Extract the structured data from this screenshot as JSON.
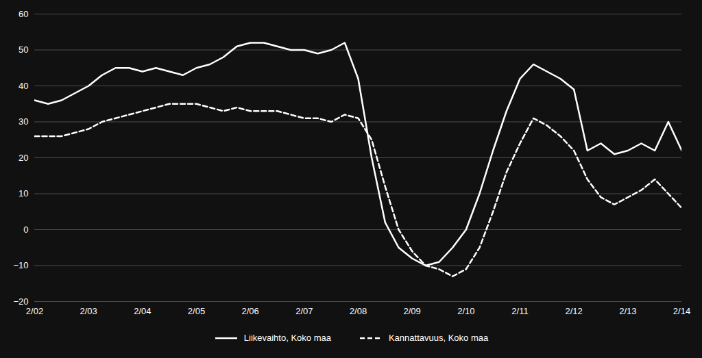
{
  "chart_data": {
    "type": "line",
    "categories": [
      "2/02",
      null,
      null,
      null,
      "2/03",
      null,
      null,
      null,
      "2/04",
      null,
      null,
      null,
      "2/05",
      null,
      null,
      null,
      "2/06",
      null,
      null,
      null,
      "2/07",
      null,
      null,
      null,
      "2/08",
      null,
      null,
      null,
      "2/09",
      null,
      null,
      null,
      "2/10",
      null,
      null,
      null,
      "2/11",
      null,
      null,
      null,
      "2/12",
      null,
      null,
      null,
      "2/13",
      null,
      null,
      null,
      "2/14"
    ],
    "series": [
      {
        "name": "Liikevaihto, Koko maa",
        "color": "#ffffff",
        "line_style": "solid",
        "values": [
          36,
          35,
          36,
          38,
          40,
          43,
          45,
          45,
          44,
          45,
          44,
          43,
          45,
          46,
          48,
          51,
          52,
          52,
          51,
          50,
          50,
          49,
          50,
          52,
          42,
          20,
          2,
          -5,
          -8,
          -10,
          -9,
          -5,
          0,
          10,
          22,
          33,
          42,
          46,
          44,
          42,
          39,
          22,
          24,
          21,
          22,
          24,
          22,
          30,
          22
        ]
      },
      {
        "name": "Kannattavuus, Koko maa",
        "color": "#ffffff",
        "line_style": "dashed",
        "values": [
          26,
          26,
          26,
          27,
          28,
          30,
          31,
          32,
          33,
          34,
          35,
          35,
          35,
          34,
          33,
          34,
          33,
          33,
          33,
          32,
          31,
          31,
          30,
          32,
          31,
          25,
          12,
          0,
          -6,
          -10,
          -11,
          -13,
          -11,
          -5,
          5,
          16,
          24,
          31,
          29,
          26,
          22,
          14,
          9,
          7,
          9,
          11,
          14,
          10,
          6
        ]
      }
    ],
    "ylim": [
      -20,
      60
    ],
    "yticks": [
      -20,
      -10,
      0,
      10,
      20,
      30,
      40,
      50,
      60
    ],
    "grid": true,
    "legend": "bottom"
  }
}
